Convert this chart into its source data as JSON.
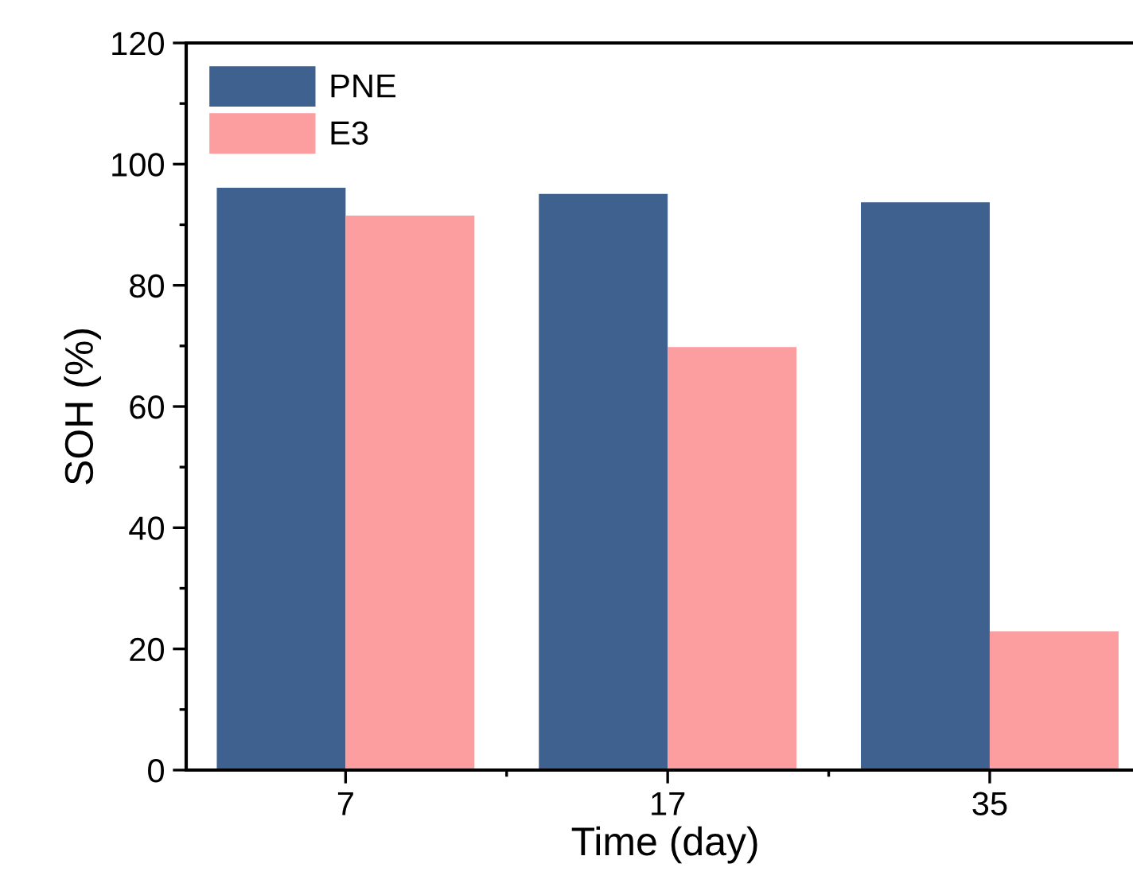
{
  "chart_data": {
    "type": "bar",
    "xlabel": "Time (day)",
    "ylabel": "SOH (%)",
    "categories": [
      "7",
      "17",
      "35"
    ],
    "series": [
      {
        "name": "PNE",
        "color": "#3f6190",
        "values": [
          96.1,
          95.1,
          93.7
        ]
      },
      {
        "name": "E3",
        "color": "#fc9d9f",
        "values": [
          91.5,
          69.8,
          22.9
        ]
      }
    ],
    "ylim": [
      0,
      120
    ],
    "yticks": [
      0,
      20,
      40,
      60,
      80,
      100,
      120
    ],
    "grid": false,
    "legend": "top left"
  }
}
